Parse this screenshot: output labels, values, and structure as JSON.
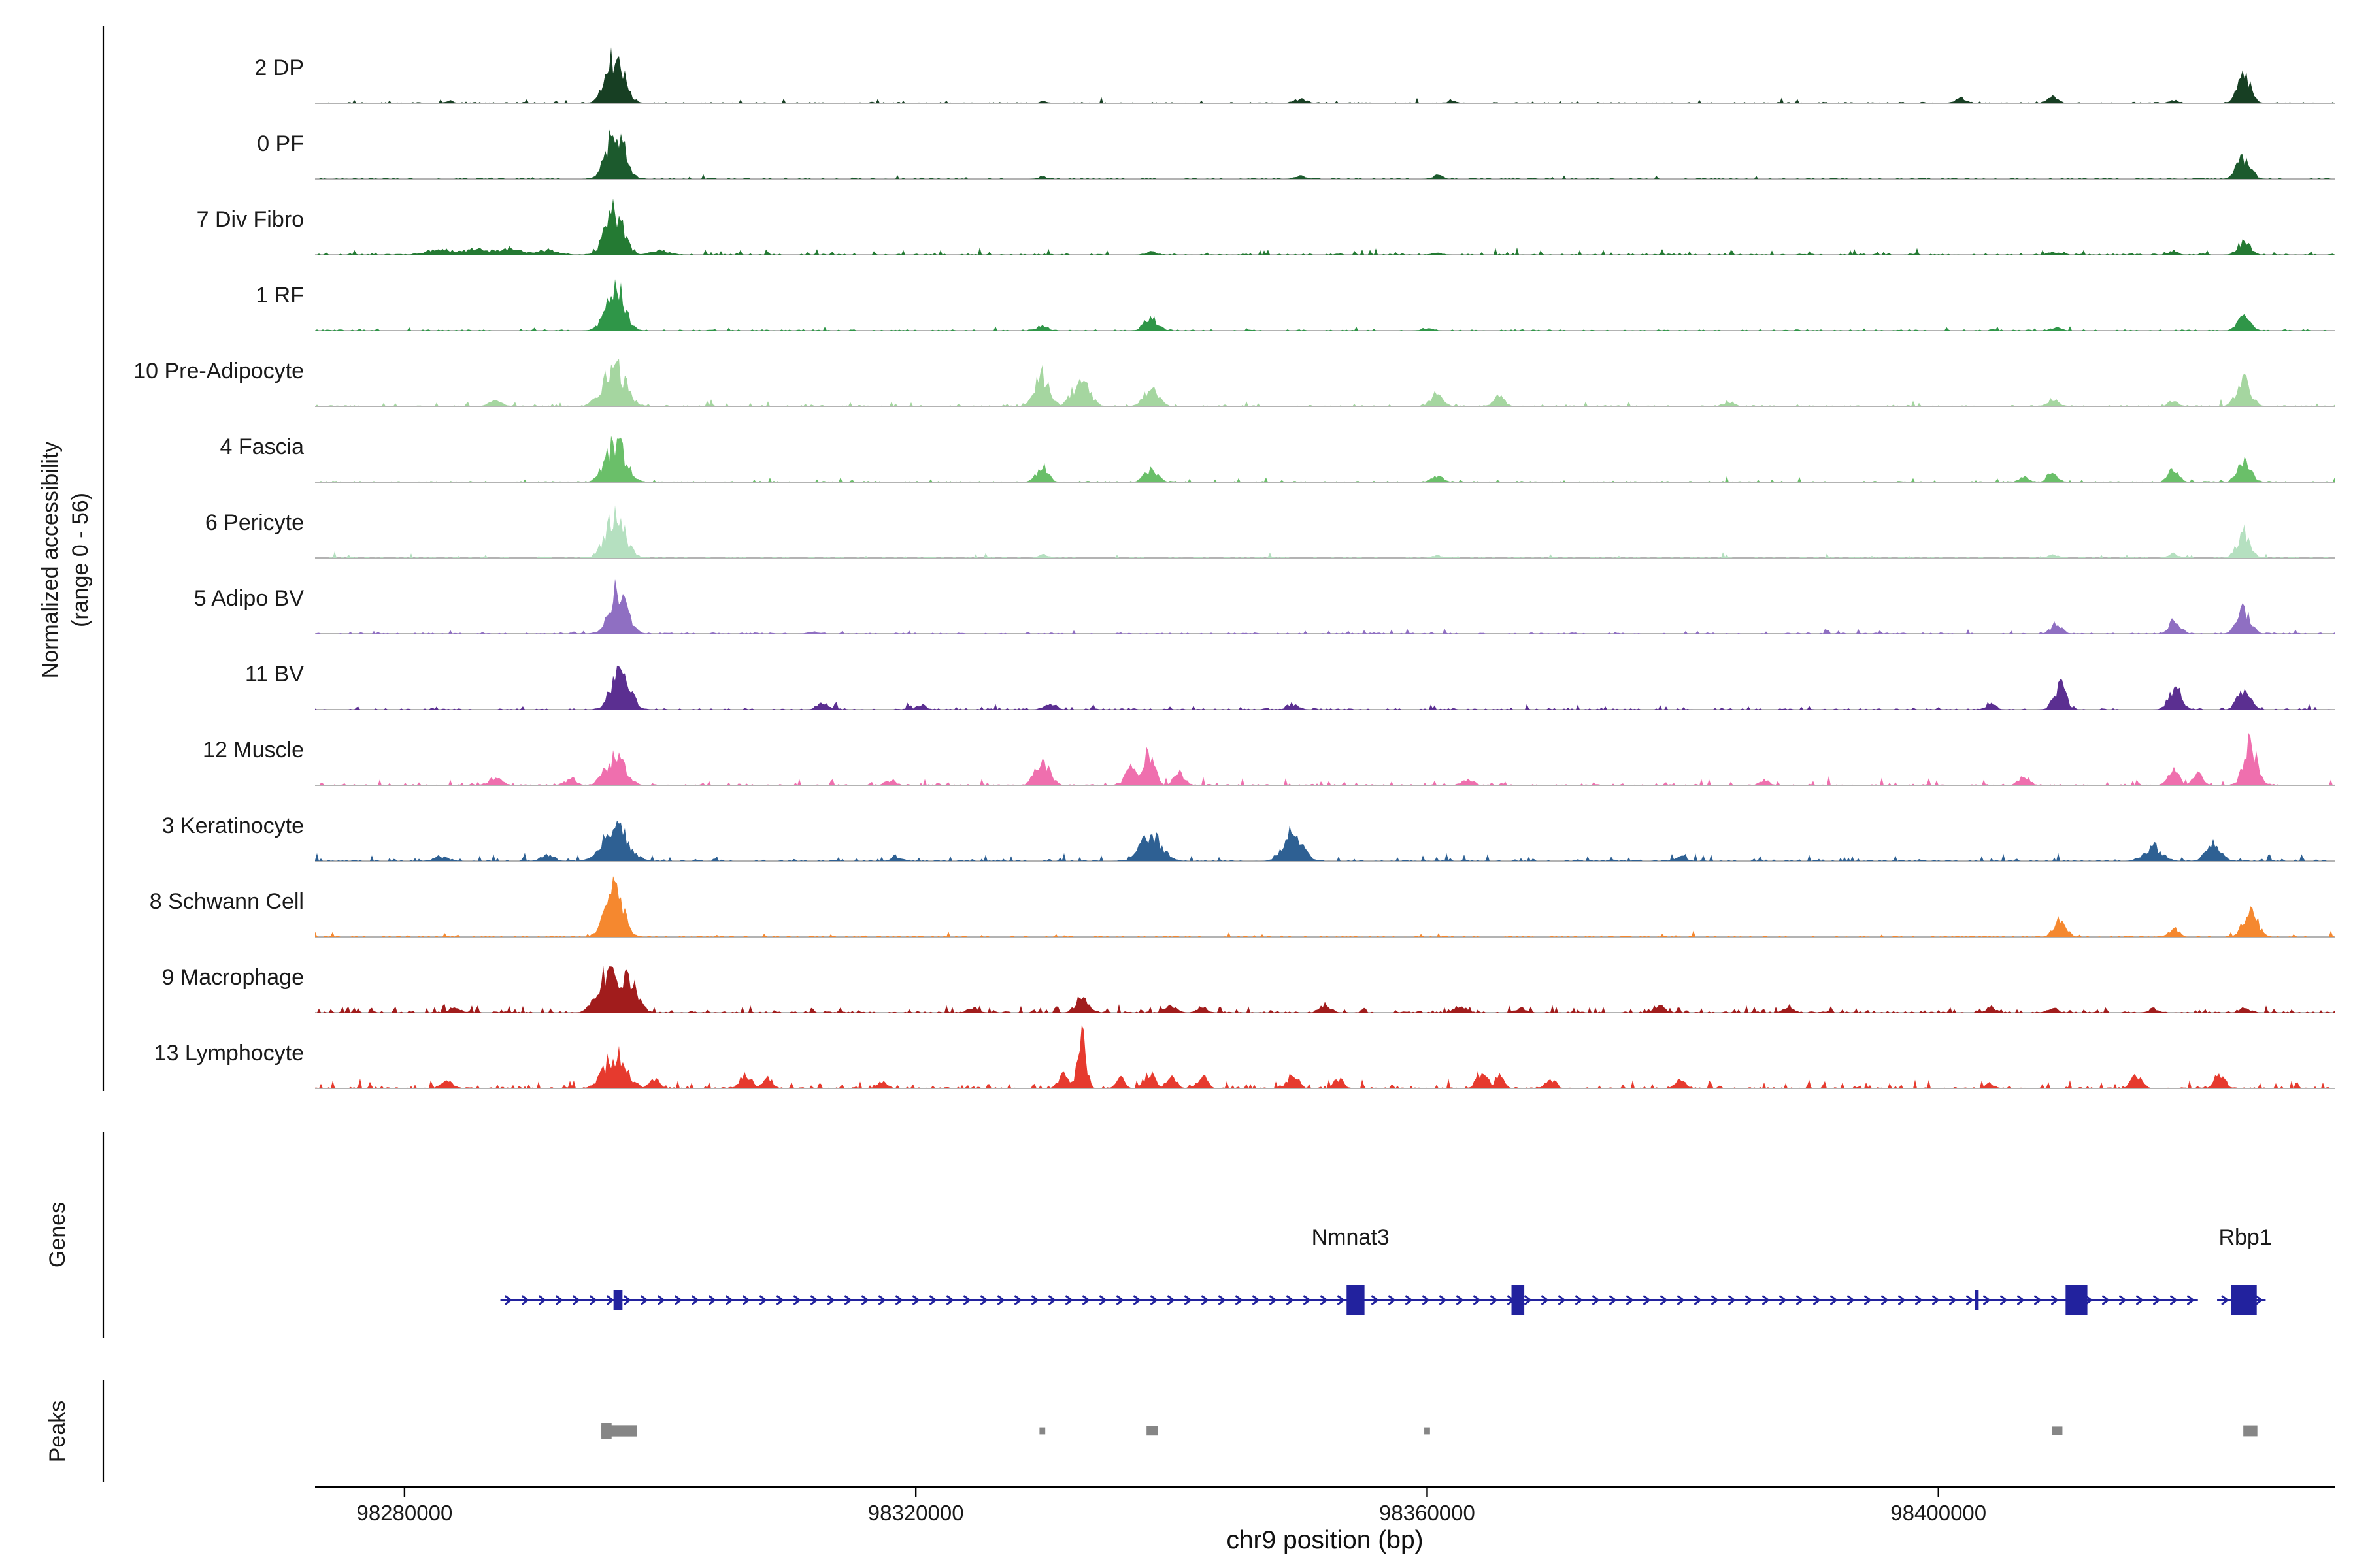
{
  "figure": {
    "y_axis_label_line1": "Normalized accessibility",
    "y_axis_label_line2": "(range 0 - 56)",
    "genes_section_label": "Genes",
    "peaks_section_label": "Peaks",
    "x_axis_label": "chr9 position (bp)"
  },
  "chart_data": {
    "type": "area",
    "subtype": "genome-accessibility-tracks",
    "title": "",
    "xlabel": "chr9 position (bp)",
    "ylabel": "Normalized accessibility (range 0 - 56)",
    "y_range_per_track": [
      0,
      56
    ],
    "x_domain": [
      98273000,
      98431000
    ],
    "x_ticks": [
      98280000,
      98320000,
      98360000,
      98400000
    ],
    "gene_color": "#22229e",
    "peak_box_color": "#868686",
    "tracks": [
      {
        "label": "2 DP",
        "color": "#173f23",
        "noise_density": 0.05,
        "noise_amp": 0.05,
        "peaks": [
          [
            98283500,
            0.05,
            800
          ],
          [
            98296500,
            0.92,
            1500
          ],
          [
            98330000,
            0.04,
            700
          ],
          [
            98350100,
            0.08,
            1200
          ],
          [
            98362000,
            0.05,
            800
          ],
          [
            98401800,
            0.1,
            1000
          ],
          [
            98408900,
            0.13,
            900
          ],
          [
            98418400,
            0.06,
            700
          ],
          [
            98423900,
            0.52,
            1100
          ]
        ]
      },
      {
        "label": "0 PF",
        "color": "#1c5a2d",
        "noise_density": 0.04,
        "noise_amp": 0.05,
        "peaks": [
          [
            98296500,
            0.95,
            1500
          ],
          [
            98329900,
            0.05,
            700
          ],
          [
            98350100,
            0.06,
            900
          ],
          [
            98360800,
            0.08,
            800
          ],
          [
            98423900,
            0.45,
            1100
          ]
        ]
      },
      {
        "label": "7 Div Fibro",
        "color": "#247a33",
        "noise_density": 0.18,
        "noise_amp": 0.06,
        "peaks": [
          [
            98283000,
            0.1,
            2500
          ],
          [
            98285500,
            0.12,
            2000
          ],
          [
            98288000,
            0.13,
            2500
          ],
          [
            98291000,
            0.1,
            2000
          ],
          [
            98296400,
            0.85,
            1500
          ],
          [
            98300000,
            0.08,
            1500
          ],
          [
            98338400,
            0.06,
            900
          ],
          [
            98360800,
            0.05,
            800
          ],
          [
            98409000,
            0.06,
            900
          ],
          [
            98418400,
            0.08,
            800
          ],
          [
            98423900,
            0.28,
            1000
          ]
        ]
      },
      {
        "label": "1 RF",
        "color": "#2f9648",
        "noise_density": 0.06,
        "noise_amp": 0.05,
        "peaks": [
          [
            98296500,
            0.9,
            1500
          ],
          [
            98329900,
            0.1,
            900
          ],
          [
            98338400,
            0.26,
            1100
          ],
          [
            98360000,
            0.06,
            800
          ],
          [
            98409200,
            0.07,
            800
          ],
          [
            98423900,
            0.32,
            1000
          ]
        ]
      },
      {
        "label": "10 Pre-Adipocyte",
        "color": "#a5d6a0",
        "noise_density": 0.1,
        "noise_amp": 0.06,
        "peaks": [
          [
            98287100,
            0.1,
            1200
          ],
          [
            98296400,
            0.8,
            1800
          ],
          [
            98329900,
            0.62,
            1200
          ],
          [
            98332900,
            0.5,
            1400
          ],
          [
            98338400,
            0.36,
            1200
          ],
          [
            98360800,
            0.26,
            1000
          ],
          [
            98365600,
            0.2,
            900
          ],
          [
            98383600,
            0.1,
            900
          ],
          [
            98408900,
            0.14,
            900
          ],
          [
            98418400,
            0.12,
            800
          ],
          [
            98423900,
            0.5,
            1200
          ]
        ]
      },
      {
        "label": "4 Fascia",
        "color": "#6abf69",
        "noise_density": 0.08,
        "noise_amp": 0.05,
        "peaks": [
          [
            98296500,
            0.8,
            1600
          ],
          [
            98329900,
            0.3,
            1000
          ],
          [
            98338400,
            0.25,
            1100
          ],
          [
            98360800,
            0.14,
            900
          ],
          [
            98406700,
            0.1,
            800
          ],
          [
            98408900,
            0.18,
            900
          ],
          [
            98418400,
            0.24,
            900
          ],
          [
            98423900,
            0.45,
            1100
          ]
        ]
      },
      {
        "label": "6 Pericyte",
        "color": "#b5e0c0",
        "noise_density": 0.05,
        "noise_amp": 0.05,
        "peaks": [
          [
            98296500,
            0.82,
            1600
          ],
          [
            98330000,
            0.06,
            800
          ],
          [
            98360800,
            0.05,
            800
          ],
          [
            98409000,
            0.06,
            800
          ],
          [
            98418400,
            0.08,
            800
          ],
          [
            98423900,
            0.5,
            1100
          ]
        ]
      },
      {
        "label": "5 Adipo BV",
        "color": "#8f6fc2",
        "noise_density": 0.07,
        "noise_amp": 0.05,
        "peaks": [
          [
            98296700,
            0.85,
            1500
          ],
          [
            98312000,
            0.05,
            800
          ],
          [
            98409200,
            0.2,
            900
          ],
          [
            98418500,
            0.3,
            900
          ],
          [
            98423900,
            0.5,
            1100
          ]
        ]
      },
      {
        "label": "11 BV",
        "color": "#5b2f91",
        "noise_density": 0.1,
        "noise_amp": 0.06,
        "peaks": [
          [
            98296900,
            0.8,
            1500
          ],
          [
            98312700,
            0.14,
            900
          ],
          [
            98320400,
            0.1,
            800
          ],
          [
            98330500,
            0.14,
            900
          ],
          [
            98349500,
            0.12,
            900
          ],
          [
            98404100,
            0.14,
            800
          ],
          [
            98409500,
            0.48,
            1000
          ],
          [
            98418500,
            0.44,
            1000
          ],
          [
            98423900,
            0.46,
            1000
          ]
        ]
      },
      {
        "label": "12 Muscle",
        "color": "#ef6fae",
        "noise_density": 0.16,
        "noise_amp": 0.07,
        "peaks": [
          [
            98287100,
            0.14,
            1100
          ],
          [
            98293000,
            0.12,
            1000
          ],
          [
            98296500,
            0.6,
            1600
          ],
          [
            98318000,
            0.1,
            900
          ],
          [
            98329900,
            0.48,
            1200
          ],
          [
            98337000,
            0.42,
            1100
          ],
          [
            98338300,
            0.68,
            900
          ],
          [
            98340600,
            0.28,
            900
          ],
          [
            98363200,
            0.14,
            900
          ],
          [
            98386400,
            0.1,
            800
          ],
          [
            98406700,
            0.18,
            900
          ],
          [
            98418400,
            0.28,
            900
          ],
          [
            98420300,
            0.22,
            800
          ],
          [
            98424400,
            0.8,
            1100
          ]
        ]
      },
      {
        "label": "3 Keratinocyte",
        "color": "#2e6093",
        "noise_density": 0.2,
        "noise_amp": 0.07,
        "peaks": [
          [
            98282900,
            0.1,
            1200
          ],
          [
            98291200,
            0.12,
            1100
          ],
          [
            98296500,
            0.7,
            2000
          ],
          [
            98318500,
            0.1,
            900
          ],
          [
            98338400,
            0.48,
            1800
          ],
          [
            98349500,
            0.58,
            1500
          ],
          [
            98379800,
            0.1,
            900
          ],
          [
            98416800,
            0.28,
            1500
          ],
          [
            98421500,
            0.34,
            1200
          ]
        ]
      },
      {
        "label": "8 Schwann Cell",
        "color": "#f5882f",
        "noise_density": 0.08,
        "noise_amp": 0.05,
        "peaks": [
          [
            98296400,
            0.9,
            1500
          ],
          [
            98409500,
            0.38,
            1000
          ],
          [
            98418400,
            0.18,
            800
          ],
          [
            98424400,
            0.58,
            1100
          ]
        ]
      },
      {
        "label": "9 Macrophage",
        "color": "#a11c1c",
        "noise_density": 0.3,
        "noise_amp": 0.07,
        "peaks": [
          [
            98283900,
            0.1,
            1000
          ],
          [
            98296000,
            0.88,
            1700
          ],
          [
            98297500,
            0.75,
            1400
          ],
          [
            98324500,
            0.1,
            900
          ],
          [
            98333000,
            0.33,
            1000
          ],
          [
            98340000,
            0.14,
            900
          ],
          [
            98342400,
            0.12,
            800
          ],
          [
            98352000,
            0.18,
            900
          ],
          [
            98362600,
            0.14,
            900
          ],
          [
            98367300,
            0.1,
            800
          ],
          [
            98378100,
            0.14,
            900
          ],
          [
            98388300,
            0.12,
            800
          ],
          [
            98404100,
            0.12,
            800
          ],
          [
            98408900,
            0.1,
            800
          ],
          [
            98416800,
            0.08,
            800
          ],
          [
            98424000,
            0.1,
            800
          ]
        ]
      },
      {
        "label": "13 Lymphocyte",
        "color": "#e63a2e",
        "noise_density": 0.28,
        "noise_amp": 0.08,
        "peaks": [
          [
            98283400,
            0.14,
            1000
          ],
          [
            98296500,
            0.68,
            1800
          ],
          [
            98299500,
            0.2,
            900
          ],
          [
            98306700,
            0.3,
            900
          ],
          [
            98308400,
            0.24,
            800
          ],
          [
            98317400,
            0.14,
            800
          ],
          [
            98331600,
            0.28,
            900
          ],
          [
            98333000,
            1.0,
            700
          ],
          [
            98336000,
            0.2,
            800
          ],
          [
            98338300,
            0.34,
            900
          ],
          [
            98340000,
            0.28,
            800
          ],
          [
            98342400,
            0.24,
            800
          ],
          [
            98349500,
            0.3,
            900
          ],
          [
            98353100,
            0.2,
            800
          ],
          [
            98364300,
            0.34,
            900
          ],
          [
            98365600,
            0.24,
            800
          ],
          [
            98369700,
            0.2,
            800
          ],
          [
            98379800,
            0.2,
            800
          ],
          [
            98404000,
            0.1,
            800
          ],
          [
            98415500,
            0.24,
            900
          ],
          [
            98422000,
            0.28,
            900
          ]
        ]
      }
    ],
    "genes": [
      {
        "name": "Nmnat3",
        "start": 98287500,
        "end": 98420300,
        "strand": "+",
        "label_x": 98354000,
        "exons": [
          [
            98296700,
            700
          ],
          [
            98354400,
            1400
          ],
          [
            98367100,
            1000
          ],
          [
            98403000,
            300
          ],
          [
            98410800,
            1700
          ]
        ]
      },
      {
        "name": "Rbp1",
        "start": 98421800,
        "end": 98425600,
        "strand": "+",
        "label_x": 98424000,
        "exons": [
          [
            98423900,
            2000
          ]
        ]
      }
    ],
    "peak_calls": [
      [
        98295800,
        800,
        1.0
      ],
      [
        98296800,
        2800,
        0.72
      ],
      [
        98329900,
        450,
        0.45
      ],
      [
        98338500,
        900,
        0.6
      ],
      [
        98360000,
        450,
        0.45
      ],
      [
        98409300,
        800,
        0.55
      ],
      [
        98424400,
        1100,
        0.7
      ]
    ]
  }
}
